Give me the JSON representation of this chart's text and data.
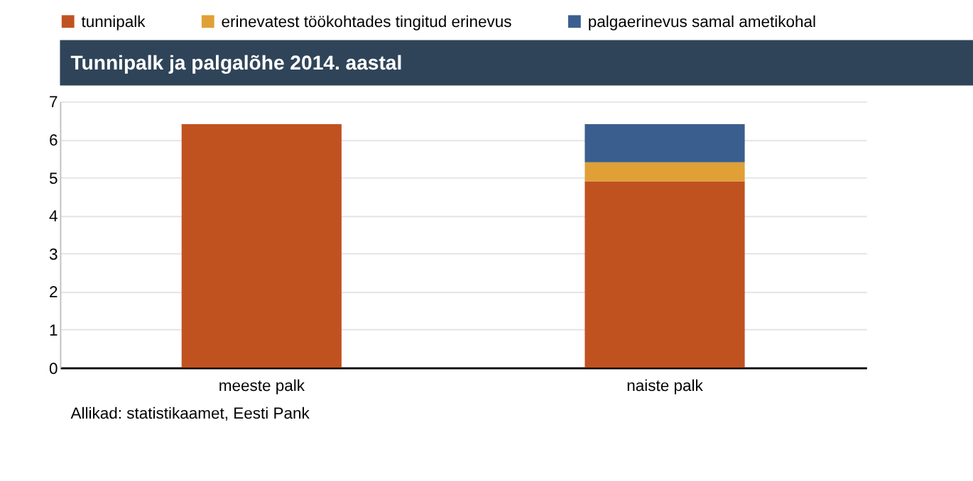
{
  "chart_data": {
    "type": "bar",
    "stacked": true,
    "title": "Tunnipalk ja palgalõhe 2014. aastal",
    "categories": [
      "meeste palk",
      "naiste palk"
    ],
    "series": [
      {
        "name": "tunnipalk",
        "color": "#c05220",
        "values": [
          6.4,
          4.9
        ]
      },
      {
        "name": "erinevatest töökohtades tingitud erinevus",
        "color": "#e0a035",
        "values": [
          null,
          0.5
        ]
      },
      {
        "name": "palgaerinevus samal ametikohal",
        "color": "#3a5f8f",
        "values": [
          null,
          1.0
        ]
      }
    ],
    "ylim": [
      0,
      7
    ],
    "yticks": [
      0,
      1,
      2,
      3,
      4,
      5,
      6,
      7
    ],
    "grid": "y",
    "legend": "top",
    "annotations": [
      "Allikad: statistikaamet, Eesti Pank"
    ]
  }
}
